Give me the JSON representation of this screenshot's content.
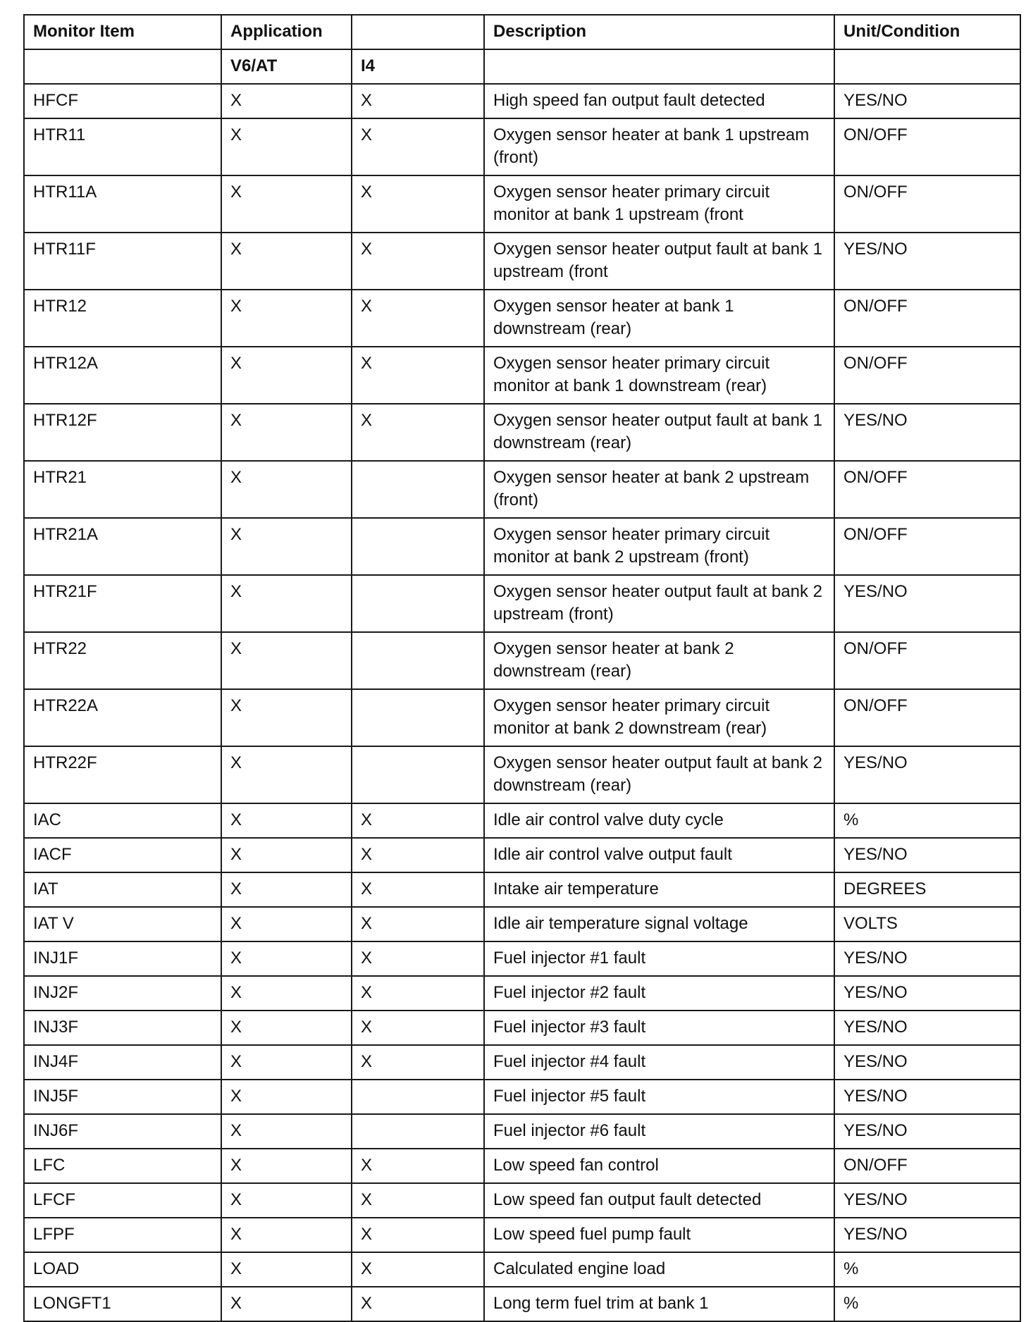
{
  "headers": {
    "monitor_item": "Monitor Item",
    "application": "Application",
    "blank": "",
    "description": "Description",
    "unit": "Unit/Condition"
  },
  "subheaders": {
    "v6at": "V6/AT",
    "i4": "I4"
  },
  "rows": [
    {
      "item": "HFCF",
      "v6": "X",
      "i4": "X",
      "desc": "High speed fan output fault detected",
      "unit": "YES/NO"
    },
    {
      "item": "HTR11",
      "v6": "X",
      "i4": "X",
      "desc": "Oxygen sensor heater at bank 1 upstream (front)",
      "unit": "ON/OFF"
    },
    {
      "item": "HTR11A",
      "v6": "X",
      "i4": "X",
      "desc": "Oxygen sensor heater primary circuit monitor at bank 1 upstream (front",
      "unit": "ON/OFF"
    },
    {
      "item": "HTR11F",
      "v6": "X",
      "i4": "X",
      "desc": "Oxygen sensor heater output fault at bank 1 upstream (front",
      "unit": "YES/NO"
    },
    {
      "item": "HTR12",
      "v6": "X",
      "i4": "X",
      "desc": "Oxygen sensor heater at bank 1 downstream (rear)",
      "unit": "ON/OFF"
    },
    {
      "item": "HTR12A",
      "v6": "X",
      "i4": "X",
      "desc": "Oxygen sensor heater primary circuit monitor at bank 1 downstream (rear)",
      "unit": "ON/OFF"
    },
    {
      "item": "HTR12F",
      "v6": "X",
      "i4": "X",
      "desc": "Oxygen sensor heater output fault at bank 1 downstream (rear)",
      "unit": "YES/NO"
    },
    {
      "item": "HTR21",
      "v6": "X",
      "i4": "",
      "desc": "Oxygen sensor heater at bank 2 upstream (front)",
      "unit": "ON/OFF"
    },
    {
      "item": "HTR21A",
      "v6": "X",
      "i4": "",
      "desc": "Oxygen sensor heater primary circuit monitor at bank 2 upstream (front)",
      "unit": "ON/OFF"
    },
    {
      "item": "HTR21F",
      "v6": "X",
      "i4": "",
      "desc": "Oxygen sensor heater output fault at bank 2 upstream (front)",
      "unit": "YES/NO"
    },
    {
      "item": "HTR22",
      "v6": "X",
      "i4": "",
      "desc": "Oxygen sensor heater at bank 2 downstream (rear)",
      "unit": "ON/OFF"
    },
    {
      "item": "HTR22A",
      "v6": "X",
      "i4": "",
      "desc": "Oxygen sensor heater primary circuit monitor at bank 2 downstream (rear)",
      "unit": "ON/OFF"
    },
    {
      "item": "HTR22F",
      "v6": "X",
      "i4": "",
      "desc": "Oxygen sensor heater output fault at bank 2 downstream (rear)",
      "unit": "YES/NO"
    },
    {
      "item": "IAC",
      "v6": "X",
      "i4": "X",
      "desc": "Idle air control valve duty cycle",
      "unit": "%"
    },
    {
      "item": "IACF",
      "v6": "X",
      "i4": "X",
      "desc": "Idle air control valve output fault",
      "unit": "YES/NO"
    },
    {
      "item": "IAT",
      "v6": "X",
      "i4": "X",
      "desc": "Intake air temperature",
      "unit": "DEGREES"
    },
    {
      "item": "IAT V",
      "v6": "X",
      "i4": "X",
      "desc": "Idle air temperature signal voltage",
      "unit": "VOLTS"
    },
    {
      "item": "INJ1F",
      "v6": "X",
      "i4": "X",
      "desc": "Fuel injector #1 fault",
      "unit": "YES/NO"
    },
    {
      "item": "INJ2F",
      "v6": "X",
      "i4": "X",
      "desc": "Fuel injector #2 fault",
      "unit": "YES/NO"
    },
    {
      "item": "INJ3F",
      "v6": "X",
      "i4": "X",
      "desc": "Fuel injector #3 fault",
      "unit": "YES/NO"
    },
    {
      "item": "INJ4F",
      "v6": "X",
      "i4": "X",
      "desc": "Fuel injector #4 fault",
      "unit": "YES/NO"
    },
    {
      "item": "INJ5F",
      "v6": "X",
      "i4": "",
      "desc": "Fuel injector #5 fault",
      "unit": "YES/NO"
    },
    {
      "item": "INJ6F",
      "v6": "X",
      "i4": "",
      "desc": "Fuel injector #6 fault",
      "unit": "YES/NO"
    },
    {
      "item": "LFC",
      "v6": "X",
      "i4": "X",
      "desc": "Low speed fan control",
      "unit": "ON/OFF"
    },
    {
      "item": "LFCF",
      "v6": "X",
      "i4": "X",
      "desc": "Low speed fan output fault detected",
      "unit": "YES/NO"
    },
    {
      "item": "LFPF",
      "v6": "X",
      "i4": "X",
      "desc": "Low speed fuel pump fault",
      "unit": "YES/NO"
    },
    {
      "item": "LOAD",
      "v6": "X",
      "i4": "X",
      "desc": "Calculated engine load",
      "unit": "%"
    },
    {
      "item": "LONGFT1",
      "v6": "X",
      "i4": "X",
      "desc": "Long term fuel trim at bank 1",
      "unit": "%"
    }
  ]
}
